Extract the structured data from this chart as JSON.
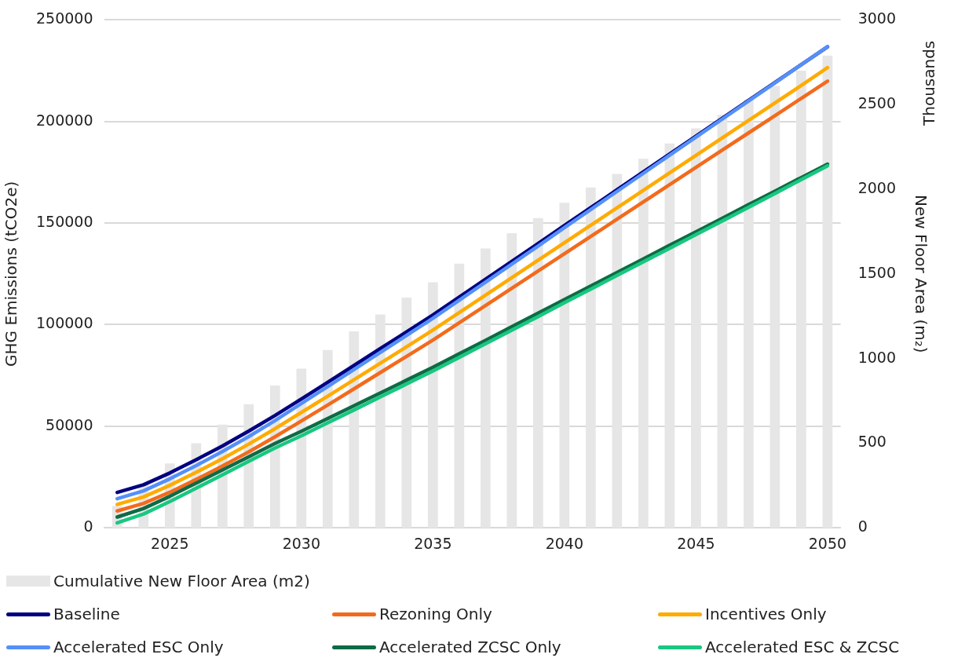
{
  "chart_data": {
    "type": "line",
    "categories": [
      null,
      null,
      "2025",
      null,
      null,
      null,
      null,
      "2030",
      null,
      null,
      null,
      null,
      "2035",
      null,
      null,
      null,
      null,
      "2040",
      null,
      null,
      null,
      null,
      "2045",
      null,
      null,
      null,
      null,
      "2050"
    ],
    "ylabel": "GHG Emissions (tCO2e)",
    "y2label": "New Floor Area (m₂)",
    "annotations": [
      "Thousands"
    ],
    "ylim": [
      0,
      250000
    ],
    "yticks": [
      0,
      50000,
      100000,
      150000,
      200000,
      250000
    ],
    "y2lim": [
      0,
      3000
    ],
    "y2ticks": [
      0,
      500,
      1000,
      1500,
      2000,
      2500,
      3000
    ],
    "grid": "y",
    "legend": "bottom",
    "marker": "none",
    "line_style": "solid",
    "series": [
      {
        "name": "Cumulative New Floor Area (m2)",
        "type": "bar",
        "axis": "y2",
        "color": "#e6e6e6",
        "values": [
          130,
          260,
          380,
          500,
          610,
          730,
          840,
          940,
          1050,
          1160,
          1260,
          1360,
          1450,
          1560,
          1650,
          1740,
          1830,
          1920,
          2010,
          2090,
          2180,
          2270,
          2360,
          2440,
          2530,
          2610,
          2700,
          2790
        ]
      },
      {
        "name": "Baseline",
        "color": "#000080",
        "values": [
          17400,
          21200,
          27000,
          33500,
          40300,
          47600,
          55300,
          63400,
          71600,
          79900,
          88200,
          96500,
          104800,
          113600,
          122400,
          131200,
          140000,
          148800,
          157600,
          166400,
          175200,
          184000,
          192800,
          201600,
          210400,
          219200,
          228000,
          236800
        ]
      },
      {
        "name": "Rezoning Only",
        "color": "#f26b1d",
        "values": [
          8300,
          12000,
          17500,
          23800,
          30400,
          37400,
          44800,
          52600,
          60400,
          68400,
          76400,
          84400,
          92400,
          100900,
          109400,
          117900,
          126400,
          134900,
          143400,
          151900,
          160400,
          168900,
          177400,
          185900,
          194400,
          202900,
          211400,
          219900
        ]
      },
      {
        "name": "Incentives Only",
        "color": "#ffab00",
        "values": [
          11500,
          15200,
          20900,
          27300,
          34000,
          41200,
          48800,
          56800,
          64800,
          72900,
          81000,
          89100,
          97300,
          105900,
          114500,
          123100,
          131700,
          140300,
          148900,
          157500,
          166100,
          174700,
          183300,
          191900,
          200500,
          209100,
          217700,
          226500
        ]
      },
      {
        "name": "Accelerated ESC Only",
        "color": "#5590f8",
        "values": [
          14300,
          18200,
          24100,
          30600,
          37600,
          44900,
          52800,
          61200,
          69500,
          77900,
          86300,
          94700,
          103100,
          112000,
          120900,
          129800,
          138700,
          147800,
          156700,
          165600,
          174500,
          183400,
          192300,
          201200,
          210100,
          219000,
          228000,
          236900
        ]
      },
      {
        "name": "Accelerated ZCSC Only",
        "color": "#0e6b45",
        "values": [
          5300,
          9500,
          15500,
          22000,
          28500,
          35000,
          41500,
          47500,
          53800,
          60100,
          66400,
          72700,
          79000,
          85700,
          92300,
          99000,
          105700,
          112400,
          119000,
          125700,
          132400,
          139100,
          145700,
          152400,
          159100,
          165700,
          172400,
          179000
        ]
      },
      {
        "name": "Accelerated ESC & ZCSC",
        "color": "#19c781",
        "values": [
          2400,
          6800,
          12900,
          19500,
          26100,
          32700,
          39300,
          45300,
          51700,
          58000,
          64400,
          70800,
          77200,
          83900,
          90600,
          97300,
          104000,
          110800,
          117500,
          124200,
          130900,
          137600,
          144300,
          151000,
          157800,
          164500,
          171400,
          178200
        ]
      }
    ]
  }
}
